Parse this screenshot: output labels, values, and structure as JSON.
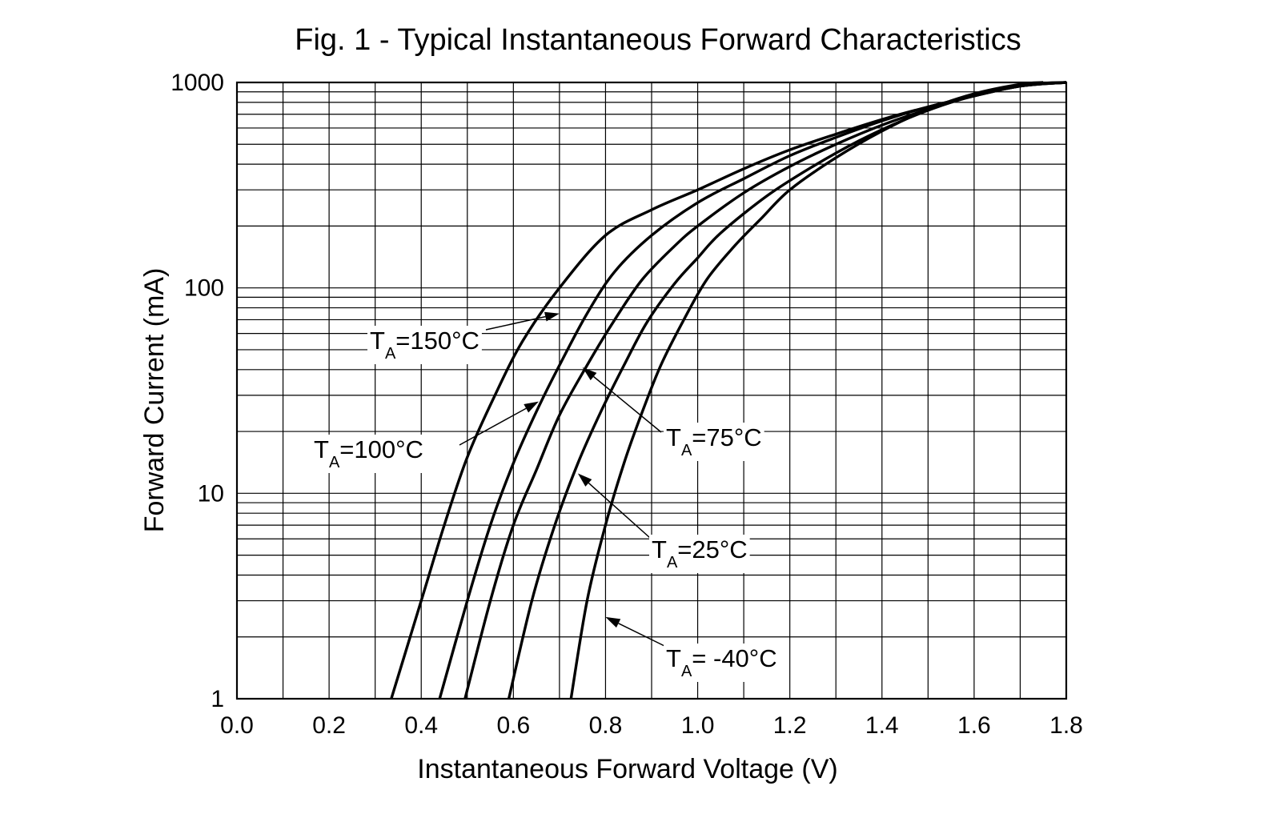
{
  "chart_data": {
    "type": "line",
    "title": "Fig. 1 - Typical Instantaneous Forward Characteristics",
    "xlabel": "Instantaneous Forward Voltage (V)",
    "ylabel": "Forward Current (mA)",
    "xlim": [
      0.0,
      1.8
    ],
    "ylim": [
      1,
      1000
    ],
    "yscale": "log",
    "grid": true,
    "x_ticks": [
      "0.0",
      "0.2",
      "0.4",
      "0.6",
      "0.8",
      "1.0",
      "1.2",
      "1.4",
      "1.6",
      "1.8"
    ],
    "y_ticks": [
      "1",
      "10",
      "100",
      "1000"
    ],
    "series": [
      {
        "name": "TA=150°C",
        "points": [
          [
            0.335,
            1
          ],
          [
            0.4,
            3
          ],
          [
            0.45,
            7
          ],
          [
            0.5,
            15
          ],
          [
            0.56,
            30
          ],
          [
            0.62,
            55
          ],
          [
            0.7,
            100
          ],
          [
            0.8,
            180
          ],
          [
            0.9,
            240
          ],
          [
            1.0,
            300
          ],
          [
            1.1,
            380
          ],
          [
            1.2,
            470
          ],
          [
            1.3,
            560
          ],
          [
            1.4,
            660
          ],
          [
            1.5,
            760
          ],
          [
            1.6,
            860
          ],
          [
            1.7,
            960
          ],
          [
            1.8,
            1000
          ]
        ]
      },
      {
        "name": "TA=100°C",
        "points": [
          [
            0.44,
            1
          ],
          [
            0.5,
            3
          ],
          [
            0.55,
            7
          ],
          [
            0.6,
            14
          ],
          [
            0.65,
            25
          ],
          [
            0.7,
            42
          ],
          [
            0.76,
            75
          ],
          [
            0.82,
            120
          ],
          [
            0.9,
            180
          ],
          [
            1.0,
            260
          ],
          [
            1.1,
            340
          ],
          [
            1.2,
            440
          ],
          [
            1.3,
            540
          ],
          [
            1.4,
            650
          ],
          [
            1.5,
            760
          ],
          [
            1.6,
            860
          ],
          [
            1.7,
            960
          ],
          [
            1.8,
            1000
          ]
        ]
      },
      {
        "name": "TA=75°C",
        "points": [
          [
            0.495,
            1
          ],
          [
            0.55,
            3
          ],
          [
            0.6,
            7
          ],
          [
            0.65,
            13
          ],
          [
            0.7,
            24
          ],
          [
            0.76,
            42
          ],
          [
            0.82,
            70
          ],
          [
            0.88,
            110
          ],
          [
            0.95,
            160
          ],
          [
            1.0,
            200
          ],
          [
            1.1,
            290
          ],
          [
            1.2,
            390
          ],
          [
            1.3,
            500
          ],
          [
            1.4,
            620
          ],
          [
            1.5,
            740
          ],
          [
            1.6,
            860
          ],
          [
            1.7,
            960
          ],
          [
            1.8,
            1000
          ]
        ]
      },
      {
        "name": "TA=25°C",
        "points": [
          [
            0.59,
            1
          ],
          [
            0.64,
            3
          ],
          [
            0.69,
            7
          ],
          [
            0.74,
            14
          ],
          [
            0.79,
            25
          ],
          [
            0.84,
            42
          ],
          [
            0.89,
            68
          ],
          [
            0.95,
            105
          ],
          [
            1.0,
            140
          ],
          [
            1.05,
            185
          ],
          [
            1.15,
            280
          ],
          [
            1.25,
            390
          ],
          [
            1.35,
            520
          ],
          [
            1.45,
            660
          ],
          [
            1.55,
            800
          ],
          [
            1.65,
            920
          ],
          [
            1.75,
            990
          ],
          [
            1.8,
            1000
          ]
        ]
      },
      {
        "name": "TA=-40°C",
        "points": [
          [
            0.725,
            1
          ],
          [
            0.76,
            3
          ],
          [
            0.8,
            7
          ],
          [
            0.84,
            14
          ],
          [
            0.88,
            25
          ],
          [
            0.92,
            42
          ],
          [
            0.97,
            70
          ],
          [
            1.02,
            110
          ],
          [
            1.08,
            160
          ],
          [
            1.14,
            220
          ],
          [
            1.2,
            300
          ],
          [
            1.3,
            430
          ],
          [
            1.4,
            580
          ],
          [
            1.5,
            740
          ],
          [
            1.6,
            880
          ],
          [
            1.7,
            980
          ],
          [
            1.75,
            1000
          ]
        ]
      }
    ],
    "annotations": [
      {
        "t": "T",
        "sub": "A",
        "rest": "=150°C",
        "target_x": 0.7,
        "target_y": 75
      },
      {
        "t": "T",
        "sub": "A",
        "rest": "=100°C",
        "target_x": 0.655,
        "target_y": 28
      },
      {
        "t": "T",
        "sub": "A",
        "rest": "=75°C",
        "target_x": 0.75,
        "target_y": 41
      },
      {
        "t": "T",
        "sub": "A",
        "rest": "=25°C",
        "target_x": 0.74,
        "target_y": 12.5
      },
      {
        "t": "T",
        "sub": "A",
        "rest": "= -40°C",
        "target_x": 0.8,
        "target_y": 2.5
      }
    ]
  }
}
